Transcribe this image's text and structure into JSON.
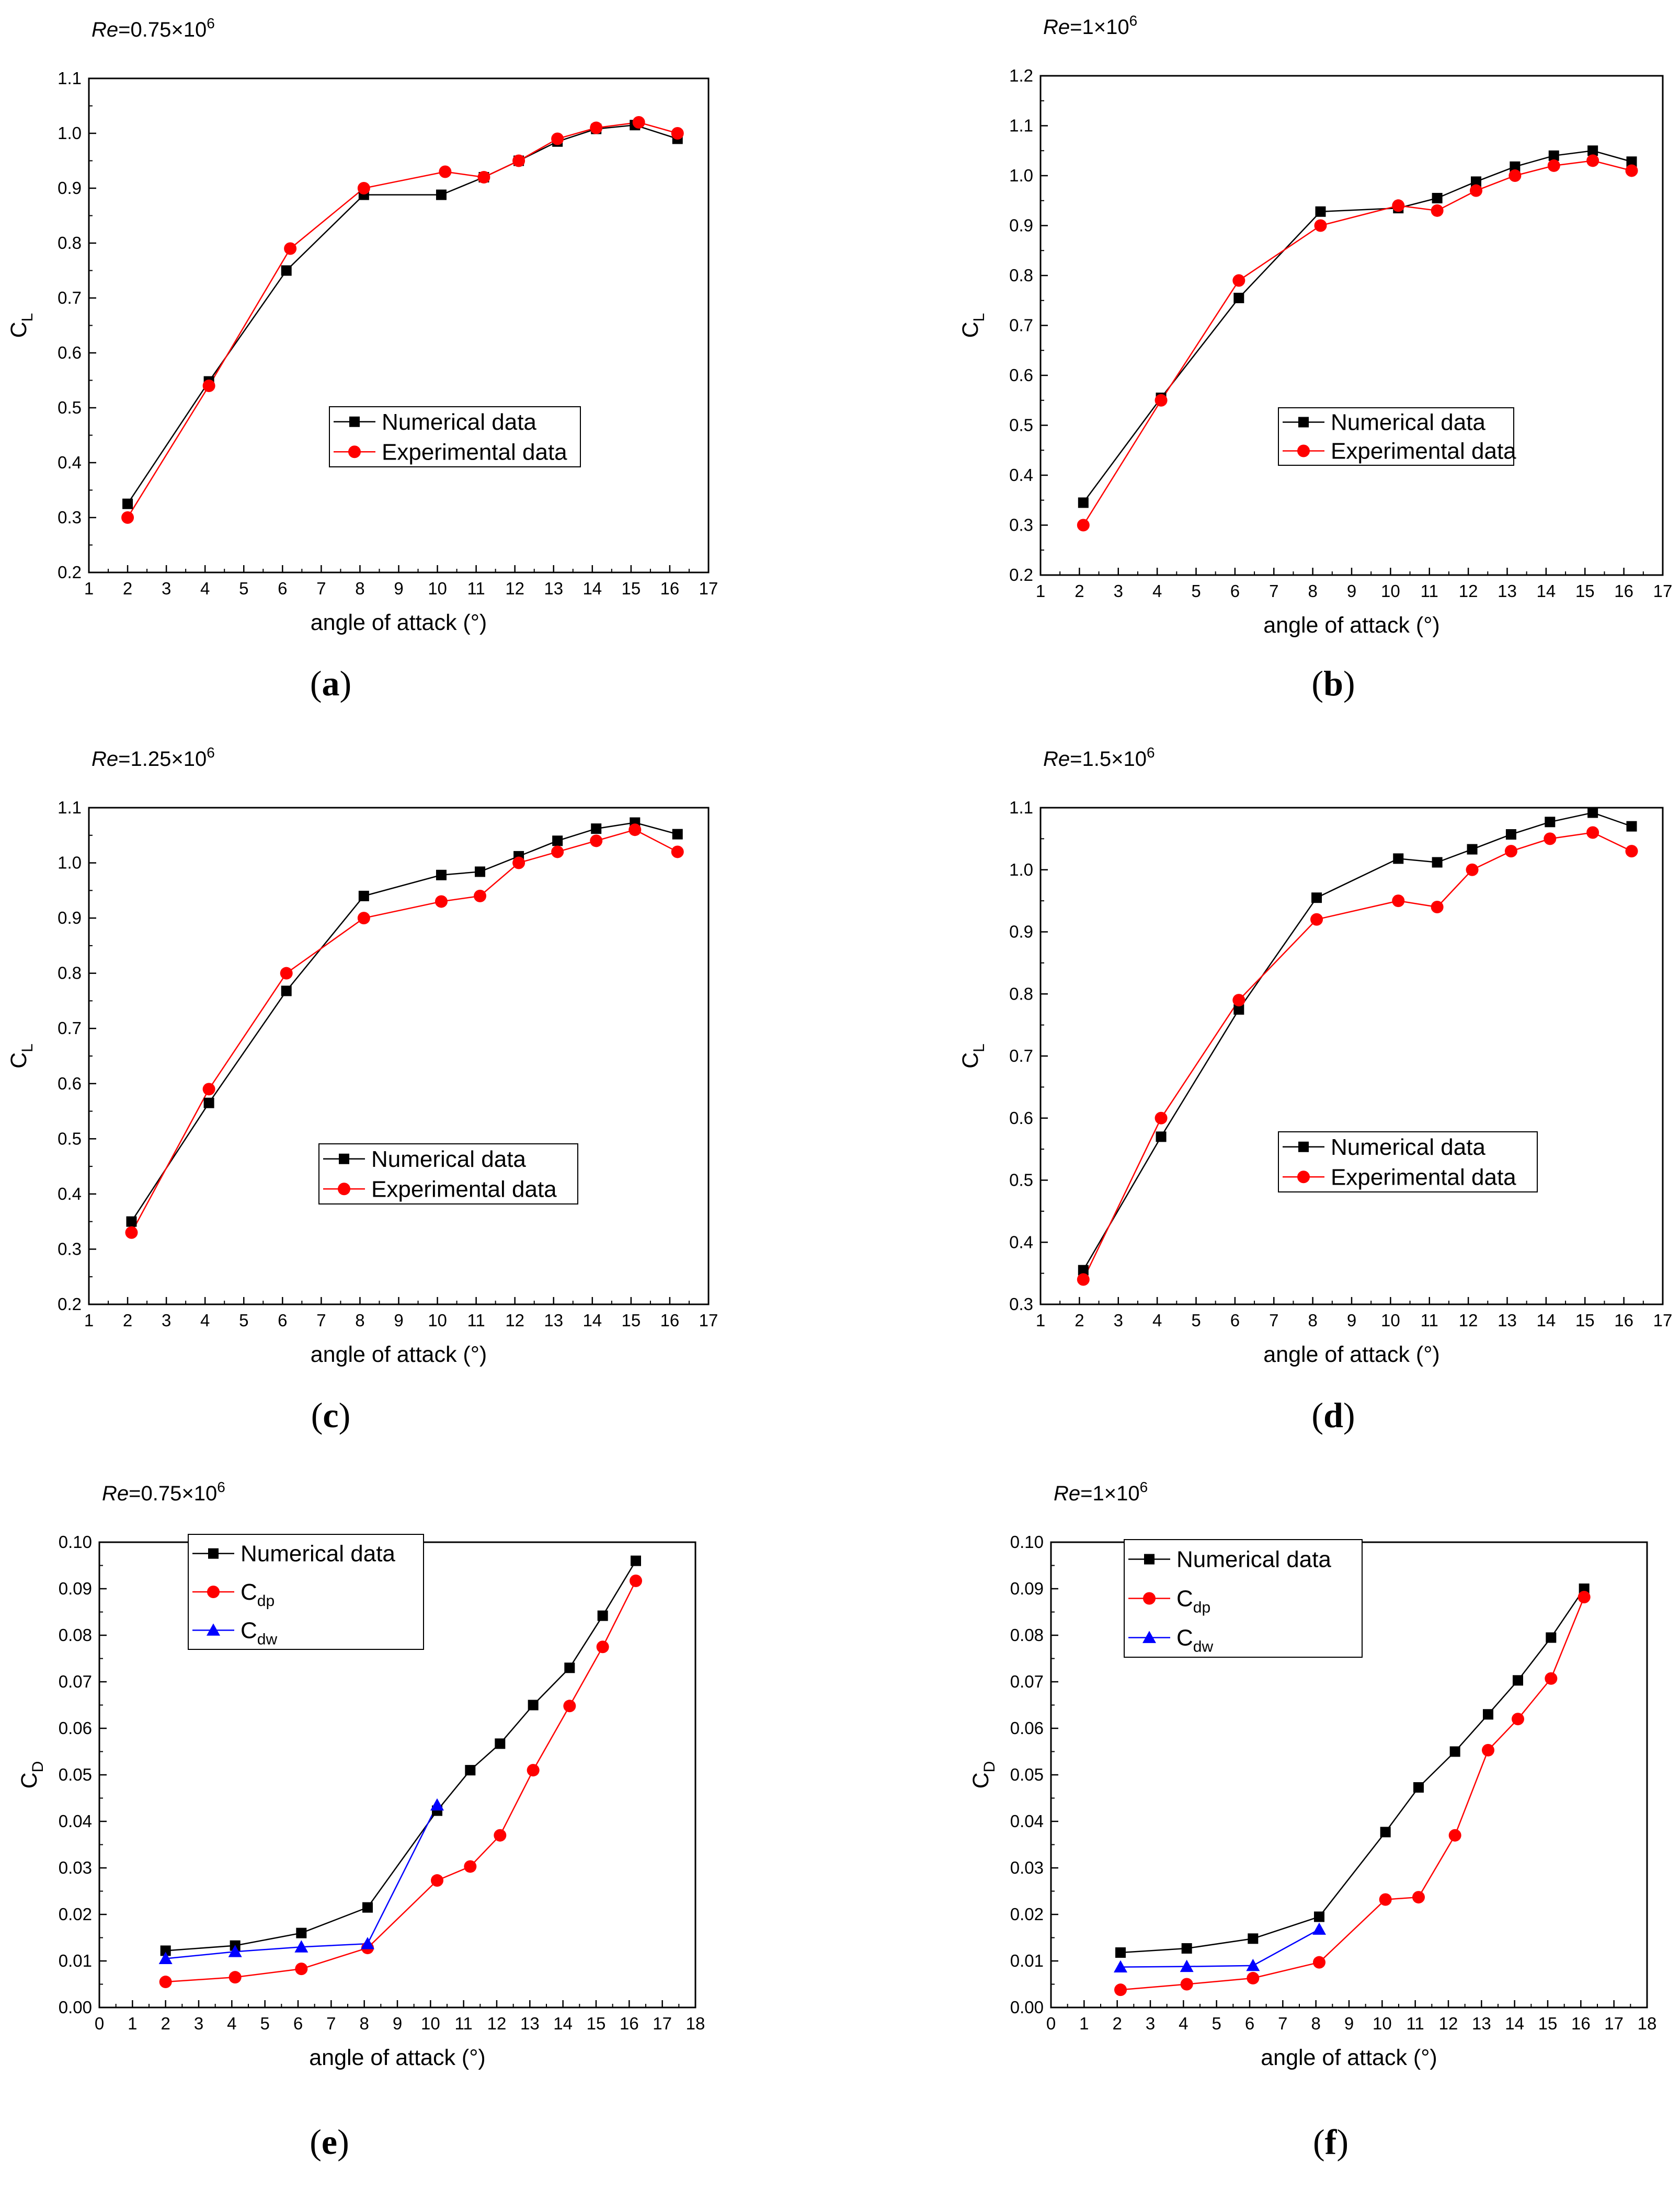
{
  "figure": {
    "colors": {
      "numerical": "#000000",
      "experimental": "#ff0000",
      "cdw": "#0000ff"
    }
  },
  "chart_data": [
    {
      "type": "line",
      "panel": "(a)",
      "re_label": {
        "prefix": "Re",
        "value": "=0.75×10",
        "exp": "6"
      },
      "xlabel": "angle of attack (°)",
      "ylabel": {
        "base": "C",
        "sub": "L"
      },
      "xlim": [
        1,
        17
      ],
      "ylim": [
        0.2,
        1.1
      ],
      "xticks": [
        1,
        2,
        3,
        4,
        5,
        6,
        7,
        8,
        9,
        10,
        11,
        12,
        13,
        14,
        15,
        16,
        17
      ],
      "yticks": [
        "0.2",
        "0.3",
        "0.4",
        "0.5",
        "0.6",
        "0.7",
        "0.8",
        "0.9",
        "1.0",
        "1.1"
      ],
      "legend": {
        "position": "center-right"
      },
      "series": [
        {
          "name": "Numerical data",
          "marker": "square",
          "color": "#000000",
          "x": [
            2,
            4.1,
            6.1,
            8.1,
            10.1,
            11.2,
            12.1,
            13.1,
            14.1,
            15.1,
            16.2
          ],
          "y": [
            0.325,
            0.548,
            0.75,
            0.888,
            0.888,
            0.92,
            0.95,
            0.985,
            1.008,
            1.015,
            0.99
          ]
        },
        {
          "name": "Experimental data",
          "marker": "circle",
          "color": "#ff0000",
          "x": [
            2,
            4.1,
            6.2,
            8.1,
            10.2,
            11.2,
            12.1,
            13.1,
            14.1,
            15.2,
            16.2
          ],
          "y": [
            0.3,
            0.54,
            0.79,
            0.9,
            0.93,
            0.92,
            0.95,
            0.99,
            1.01,
            1.02,
            1.0
          ]
        }
      ]
    },
    {
      "type": "line",
      "panel": "(b)",
      "re_label": {
        "prefix": "Re",
        "value": "=1×10",
        "exp": "6"
      },
      "xlabel": "angle of attack (°)",
      "ylabel": {
        "base": "C",
        "sub": "L"
      },
      "xlim": [
        1,
        17
      ],
      "ylim": [
        0.2,
        1.2
      ],
      "xticks": [
        1,
        2,
        3,
        4,
        5,
        6,
        7,
        8,
        9,
        10,
        11,
        12,
        13,
        14,
        15,
        16,
        17
      ],
      "yticks": [
        "0.2",
        "0.3",
        "0.4",
        "0.5",
        "0.6",
        "0.7",
        "0.8",
        "0.9",
        "1.0",
        "1.1",
        "1.2"
      ],
      "legend": {
        "position": "center-right"
      },
      "series": [
        {
          "name": "Numerical data",
          "marker": "square",
          "color": "#000000",
          "x": [
            2.1,
            4.1,
            6.1,
            8.2,
            10.2,
            11.2,
            12.2,
            13.2,
            14.2,
            15.2,
            16.2
          ],
          "y": [
            0.345,
            0.555,
            0.755,
            0.928,
            0.935,
            0.955,
            0.988,
            1.018,
            1.04,
            1.05,
            1.028
          ]
        },
        {
          "name": "Experimental data",
          "marker": "circle",
          "color": "#ff0000",
          "x": [
            2.1,
            4.1,
            6.1,
            8.2,
            10.2,
            11.2,
            12.2,
            13.2,
            14.2,
            15.2,
            16.2
          ],
          "y": [
            0.3,
            0.55,
            0.79,
            0.9,
            0.94,
            0.93,
            0.97,
            1.0,
            1.02,
            1.03,
            1.01
          ]
        }
      ]
    },
    {
      "type": "line",
      "panel": "(c)",
      "re_label": {
        "prefix": "Re",
        "value": "=1.25×10",
        "exp": "6"
      },
      "xlabel": "angle of attack (°)",
      "ylabel": {
        "base": "C",
        "sub": "L"
      },
      "xlim": [
        1,
        17
      ],
      "ylim": [
        0.2,
        1.1
      ],
      "xticks": [
        1,
        2,
        3,
        4,
        5,
        6,
        7,
        8,
        9,
        10,
        11,
        12,
        13,
        14,
        15,
        16,
        17
      ],
      "yticks": [
        "0.2",
        "0.3",
        "0.4",
        "0.5",
        "0.6",
        "0.7",
        "0.8",
        "0.9",
        "1.0",
        "1.1"
      ],
      "legend": {
        "position": "center-right"
      },
      "series": [
        {
          "name": "Numerical data",
          "marker": "square",
          "color": "#000000",
          "x": [
            2.1,
            4.1,
            6.1,
            8.1,
            10.1,
            11.1,
            12.1,
            13.1,
            14.1,
            15.1,
            16.2
          ],
          "y": [
            0.35,
            0.565,
            0.768,
            0.94,
            0.978,
            0.984,
            1.012,
            1.04,
            1.062,
            1.073,
            1.052
          ]
        },
        {
          "name": "Experimental data",
          "marker": "circle",
          "color": "#ff0000",
          "x": [
            2.1,
            4.1,
            6.1,
            8.1,
            10.1,
            11.1,
            12.1,
            13.1,
            14.1,
            15.1,
            16.2
          ],
          "y": [
            0.33,
            0.59,
            0.8,
            0.9,
            0.93,
            0.94,
            1.0,
            1.02,
            1.04,
            1.06,
            1.02
          ]
        }
      ]
    },
    {
      "type": "line",
      "panel": "(d)",
      "re_label": {
        "prefix": "Re",
        "value": "=1.5×10",
        "exp": "6"
      },
      "xlabel": "angle of attack (°)",
      "ylabel": {
        "base": "C",
        "sub": "L"
      },
      "xlim": [
        1,
        17
      ],
      "ylim": [
        0.3,
        1.1
      ],
      "xticks": [
        1,
        2,
        3,
        4,
        5,
        6,
        7,
        8,
        9,
        10,
        11,
        12,
        13,
        14,
        15,
        16,
        17
      ],
      "yticks": [
        "0.3",
        "0.4",
        "0.5",
        "0.6",
        "0.7",
        "0.8",
        "0.9",
        "1.0",
        "1.1"
      ],
      "legend": {
        "position": "center-right"
      },
      "series": [
        {
          "name": "Numerical data",
          "marker": "square",
          "color": "#000000",
          "x": [
            2.1,
            4.1,
            6.1,
            8.1,
            10.2,
            11.2,
            12.1,
            13.1,
            14.1,
            15.2,
            16.2
          ],
          "y": [
            0.355,
            0.57,
            0.775,
            0.955,
            1.018,
            1.012,
            1.033,
            1.057,
            1.077,
            1.092,
            1.07
          ]
        },
        {
          "name": "Experimental data",
          "marker": "circle",
          "color": "#ff0000",
          "x": [
            2.1,
            4.1,
            6.1,
            8.1,
            10.2,
            11.2,
            12.1,
            13.1,
            14.1,
            15.2,
            16.2
          ],
          "y": [
            0.34,
            0.6,
            0.79,
            0.92,
            0.95,
            0.94,
            1.0,
            1.03,
            1.05,
            1.06,
            1.03
          ]
        }
      ]
    },
    {
      "type": "line",
      "panel": "(e)",
      "re_label": {
        "prefix": "Re",
        "value": "=0.75×10",
        "exp": "6"
      },
      "xlabel": "angle of attack (°)",
      "ylabel": {
        "base": "C",
        "sub": "D"
      },
      "xlim": [
        0,
        18
      ],
      "ylim": [
        0,
        0.1
      ],
      "xticks": [
        0,
        1,
        2,
        3,
        4,
        5,
        6,
        7,
        8,
        9,
        10,
        11,
        12,
        13,
        14,
        15,
        16,
        17,
        18
      ],
      "yticks": [
        "0.00",
        "0.01",
        "0.02",
        "0.03",
        "0.04",
        "0.05",
        "0.06",
        "0.07",
        "0.08",
        "0.09",
        "0.10"
      ],
      "legend": {
        "position": "top-left"
      },
      "series": [
        {
          "name": "Numerical data",
          "name_sub": "",
          "marker": "square",
          "color": "#000000",
          "x": [
            2,
            4.1,
            6.1,
            8.1,
            10.2,
            11.2,
            12.1,
            13.1,
            14.2,
            15.2,
            16.2
          ],
          "y": [
            0.0122,
            0.0133,
            0.016,
            0.0215,
            0.0423,
            0.051,
            0.0567,
            0.065,
            0.073,
            0.0842,
            0.096
          ]
        },
        {
          "name": "C",
          "name_sub": "dp",
          "marker": "circle",
          "color": "#ff0000",
          "x": [
            2,
            4.1,
            6.1,
            8.1,
            10.2,
            11.2,
            12.1,
            13.1,
            14.2,
            15.2,
            16.2
          ],
          "y": [
            0.0055,
            0.0065,
            0.0083,
            0.0128,
            0.0273,
            0.0303,
            0.037,
            0.051,
            0.0648,
            0.0775,
            0.0917
          ]
        },
        {
          "name": "C",
          "name_sub": "dw",
          "marker": "triangle",
          "color": "#0000ff",
          "x": [
            2,
            4.1,
            6.1,
            8.1,
            10.2
          ],
          "y": [
            0.0105,
            0.012,
            0.013,
            0.0137,
            0.0435
          ]
        }
      ]
    },
    {
      "type": "line",
      "panel": "(f)",
      "re_label": {
        "prefix": "Re",
        "value": "=1×10",
        "exp": "6"
      },
      "xlabel": "angle of attack (°)",
      "ylabel": {
        "base": "C",
        "sub": "D"
      },
      "xlim": [
        0,
        18
      ],
      "ylim": [
        0,
        0.1
      ],
      "xticks": [
        0,
        1,
        2,
        3,
        4,
        5,
        6,
        7,
        8,
        9,
        10,
        11,
        12,
        13,
        14,
        15,
        16,
        17,
        18
      ],
      "yticks": [
        "0.00",
        "0.01",
        "0.02",
        "0.03",
        "0.04",
        "0.05",
        "0.06",
        "0.07",
        "0.08",
        "0.09",
        "0.10"
      ],
      "legend": {
        "position": "top-left"
      },
      "series": [
        {
          "name": "Numerical data",
          "name_sub": "",
          "marker": "square",
          "color": "#000000",
          "x": [
            2.1,
            4.1,
            6.1,
            8.1,
            10.1,
            11.1,
            12.2,
            13.2,
            14.1,
            15.1,
            16.1
          ],
          "y": [
            0.0118,
            0.0127,
            0.0148,
            0.0195,
            0.0377,
            0.0473,
            0.055,
            0.063,
            0.0703,
            0.0795,
            0.09
          ]
        },
        {
          "name": "C",
          "name_sub": "dp",
          "marker": "circle",
          "color": "#ff0000",
          "x": [
            2.1,
            4.1,
            6.1,
            8.1,
            10.1,
            11.1,
            12.2,
            13.2,
            14.1,
            15.1,
            16.1
          ],
          "y": [
            0.0038,
            0.005,
            0.0063,
            0.0097,
            0.0232,
            0.0237,
            0.037,
            0.0553,
            0.062,
            0.0707,
            0.0882
          ]
        },
        {
          "name": "C",
          "name_sub": "dw",
          "marker": "triangle",
          "color": "#0000ff",
          "x": [
            2.1,
            4.1,
            6.1,
            8.1
          ],
          "y": [
            0.0087,
            0.0088,
            0.009,
            0.0168
          ]
        }
      ]
    }
  ]
}
